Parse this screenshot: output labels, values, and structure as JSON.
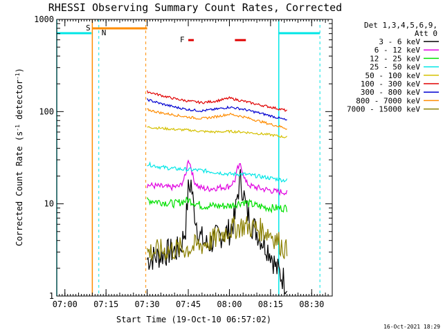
{
  "chart_data": {
    "type": "line",
    "title": "RHESSI Observing Summary Count Rates, Corrected",
    "xlabel": "Start Time (19-Oct-10 06:57:02)",
    "ylabel_prefix": "Corrected Count Rate (s",
    "ylabel_sup1": "-1",
    "ylabel_mid": " detector",
    "ylabel_sup2": "-1",
    "ylabel_suffix": ")",
    "yscale": "log",
    "ylim": [
      1,
      1000
    ],
    "xlim": [
      "06:57:02",
      "08:37:30"
    ],
    "x_ticks": [
      "07:00",
      "07:15",
      "07:30",
      "07:45",
      "08:00",
      "08:15",
      "08:30"
    ],
    "y_ticks": [
      "1",
      "10",
      "100",
      "1000"
    ],
    "legend_header_1": "Det 1,3,4,5,6,9,",
    "legend_header_2": "Att 0",
    "legend_placement": "right",
    "timestamp": "16-Oct-2021 18:29",
    "series": [
      {
        "name": "3 - 6 keV",
        "color": "#000000",
        "x": [
          "07:30",
          "07:34",
          "07:38",
          "07:42",
          "07:44",
          "07:45",
          "07:46",
          "07:47",
          "07:49",
          "07:52",
          "07:56",
          "08:00",
          "08:02",
          "08:03",
          "08:04",
          "08:05",
          "08:06",
          "08:08",
          "08:10",
          "08:12",
          "08:15",
          "08:17",
          "08:20",
          "08:21"
        ],
        "values": [
          2.5,
          2.7,
          3.0,
          3.2,
          5.5,
          14,
          17,
          9,
          4.5,
          3.5,
          4.5,
          5.0,
          7,
          13,
          18,
          14,
          9,
          6,
          5,
          4,
          3,
          2.0,
          1.5,
          1.3
        ]
      },
      {
        "name": "6 - 12 keV",
        "color": "#e000e0",
        "x": [
          "07:30",
          "07:34",
          "07:38",
          "07:42",
          "07:44",
          "07:45",
          "07:46",
          "07:47",
          "07:49",
          "07:52",
          "07:56",
          "08:00",
          "08:02",
          "08:03",
          "08:04",
          "08:05",
          "08:06",
          "08:08",
          "08:10",
          "08:12",
          "08:15",
          "08:17",
          "08:20",
          "08:21"
        ],
        "values": [
          16,
          15.5,
          15,
          15.5,
          20,
          31,
          25,
          18,
          15,
          14.5,
          15,
          15.5,
          18,
          24,
          26,
          22,
          17,
          15.5,
          15,
          14.5,
          14,
          13.5,
          13.5,
          13
        ]
      },
      {
        "name": "12 - 25 keV",
        "color": "#00e000",
        "x": [
          "07:30",
          "07:35",
          "07:40",
          "07:45",
          "07:50",
          "07:55",
          "08:00",
          "08:05",
          "08:10",
          "08:15",
          "08:20",
          "08:21"
        ],
        "values": [
          11,
          10.5,
          10,
          11,
          9.5,
          9.5,
          9.5,
          10.5,
          9.5,
          9.0,
          9.0,
          9.0
        ]
      },
      {
        "name": "25 - 50 keV",
        "color": "#00e6e6",
        "x": [
          "07:30",
          "07:35",
          "07:40",
          "07:45",
          "07:50",
          "07:55",
          "08:00",
          "08:05",
          "08:10",
          "08:15",
          "08:20",
          "08:21"
        ],
        "values": [
          27,
          25,
          24,
          23.5,
          23,
          22,
          21,
          21,
          20,
          19,
          18,
          18
        ]
      },
      {
        "name": "50 - 100 keV",
        "color": "#d4c000",
        "x": [
          "07:30",
          "07:35",
          "07:40",
          "07:45",
          "07:50",
          "07:55",
          "08:00",
          "08:05",
          "08:10",
          "08:15",
          "08:20",
          "08:21"
        ],
        "values": [
          68,
          66,
          64,
          63,
          61,
          60,
          61,
          60,
          58,
          56,
          53,
          53
        ]
      },
      {
        "name": "100 - 300 keV",
        "color": "#e00000",
        "x": [
          "07:30",
          "07:35",
          "07:40",
          "07:45",
          "07:50",
          "07:55",
          "08:00",
          "08:05",
          "08:10",
          "08:15",
          "08:20",
          "08:21"
        ],
        "values": [
          165,
          150,
          138,
          130,
          125,
          130,
          140,
          130,
          120,
          112,
          104,
          102
        ]
      },
      {
        "name": "300 - 800 keV",
        "color": "#0000d0",
        "x": [
          "07:30",
          "07:35",
          "07:40",
          "07:45",
          "07:50",
          "07:55",
          "08:00",
          "08:05",
          "08:10",
          "08:15",
          "08:20",
          "08:21"
        ],
        "values": [
          135,
          122,
          112,
          105,
          102,
          106,
          112,
          106,
          98,
          90,
          82,
          80
        ]
      },
      {
        "name": "800 - 7000 keV",
        "color": "#ff8c00",
        "x": [
          "07:30",
          "07:35",
          "07:40",
          "07:45",
          "07:50",
          "07:55",
          "08:00",
          "08:05",
          "08:10",
          "08:15",
          "08:20",
          "08:21"
        ],
        "values": [
          105,
          97,
          92,
          87,
          84,
          88,
          94,
          88,
          80,
          73,
          67,
          65
        ]
      },
      {
        "name": "7000 - 15000 keV",
        "color": "#8b8000",
        "x": [
          "07:30",
          "07:35",
          "07:40",
          "07:45",
          "07:50",
          "07:55",
          "08:00",
          "08:05",
          "08:10",
          "08:15",
          "08:20",
          "08:21"
        ],
        "values": [
          3.0,
          3.1,
          3.2,
          3.3,
          3.6,
          4.2,
          5.3,
          5.8,
          5.4,
          4.8,
          3.3,
          3.0
        ]
      }
    ],
    "annotations": [
      {
        "label": "S",
        "color": "#ff8c00"
      },
      {
        "label": "N",
        "color": "#00e6e6"
      },
      {
        "label": "F",
        "color": "#e00000"
      }
    ]
  }
}
